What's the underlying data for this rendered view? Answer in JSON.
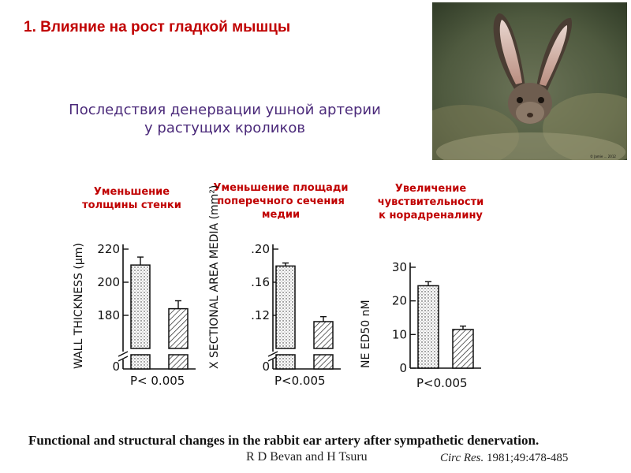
{
  "slide": {
    "title": "1. Влияние на рост гладкой мышцы",
    "subtitle_line1": "Последствия денервации ушной артерии",
    "subtitle_line2": "у растущих кроликов"
  },
  "captions": [
    {
      "lines": [
        "Уменьшение",
        "толщины стенки"
      ]
    },
    {
      "lines": [
        "Уменьшение площади",
        "поперечного сечения",
        "медии"
      ]
    },
    {
      "lines": [
        "Увеличение",
        "чувствительности",
        "к норадреналину"
      ]
    }
  ],
  "reference": {
    "title": "Functional and structural changes in the rabbit ear artery after sympathetic denervation.",
    "authors": "R D Bevan and H Tsuru",
    "journal": "Circ Res.",
    "citation": "1981;49:478-485"
  },
  "photo": {
    "subject": "hare-photo",
    "copyright": "© Jamie ... 2012"
  },
  "chart_data": [
    {
      "type": "bar",
      "ylabel": "WALL THICKNESS (µm)",
      "yticks": [
        "220",
        "200",
        "180"
      ],
      "ylim": [
        170,
        220
      ],
      "axis_break": true,
      "categories": [
        "",
        ""
      ],
      "values": [
        212,
        190
      ],
      "errors": [
        4,
        4
      ],
      "patterns": [
        "dotted",
        "hatched"
      ],
      "annotation": "P< 0.005"
    },
    {
      "type": "bar",
      "ylabel": "X SECTIONAL AREA MEDIA (mm²)",
      "yticks": [
        ".20",
        ".16",
        ".12"
      ],
      "ylim": [
        0.1,
        0.2
      ],
      "axis_break": true,
      "categories": [
        "",
        ""
      ],
      "values": [
        0.183,
        0.127
      ],
      "errors": [
        0.003,
        0.005
      ],
      "patterns": [
        "dotted",
        "hatched"
      ],
      "annotation": "P<0.005"
    },
    {
      "type": "bar",
      "ylabel": "NE ED50 nM",
      "yticks": [
        "30",
        "20",
        "10",
        "0"
      ],
      "ylim": [
        0,
        30
      ],
      "axis_break": false,
      "categories": [
        "",
        ""
      ],
      "values": [
        24.5,
        11.5
      ],
      "errors": [
        1.2,
        1.0
      ],
      "patterns": [
        "dotted",
        "hatched"
      ],
      "annotation": "P<0.005"
    }
  ]
}
